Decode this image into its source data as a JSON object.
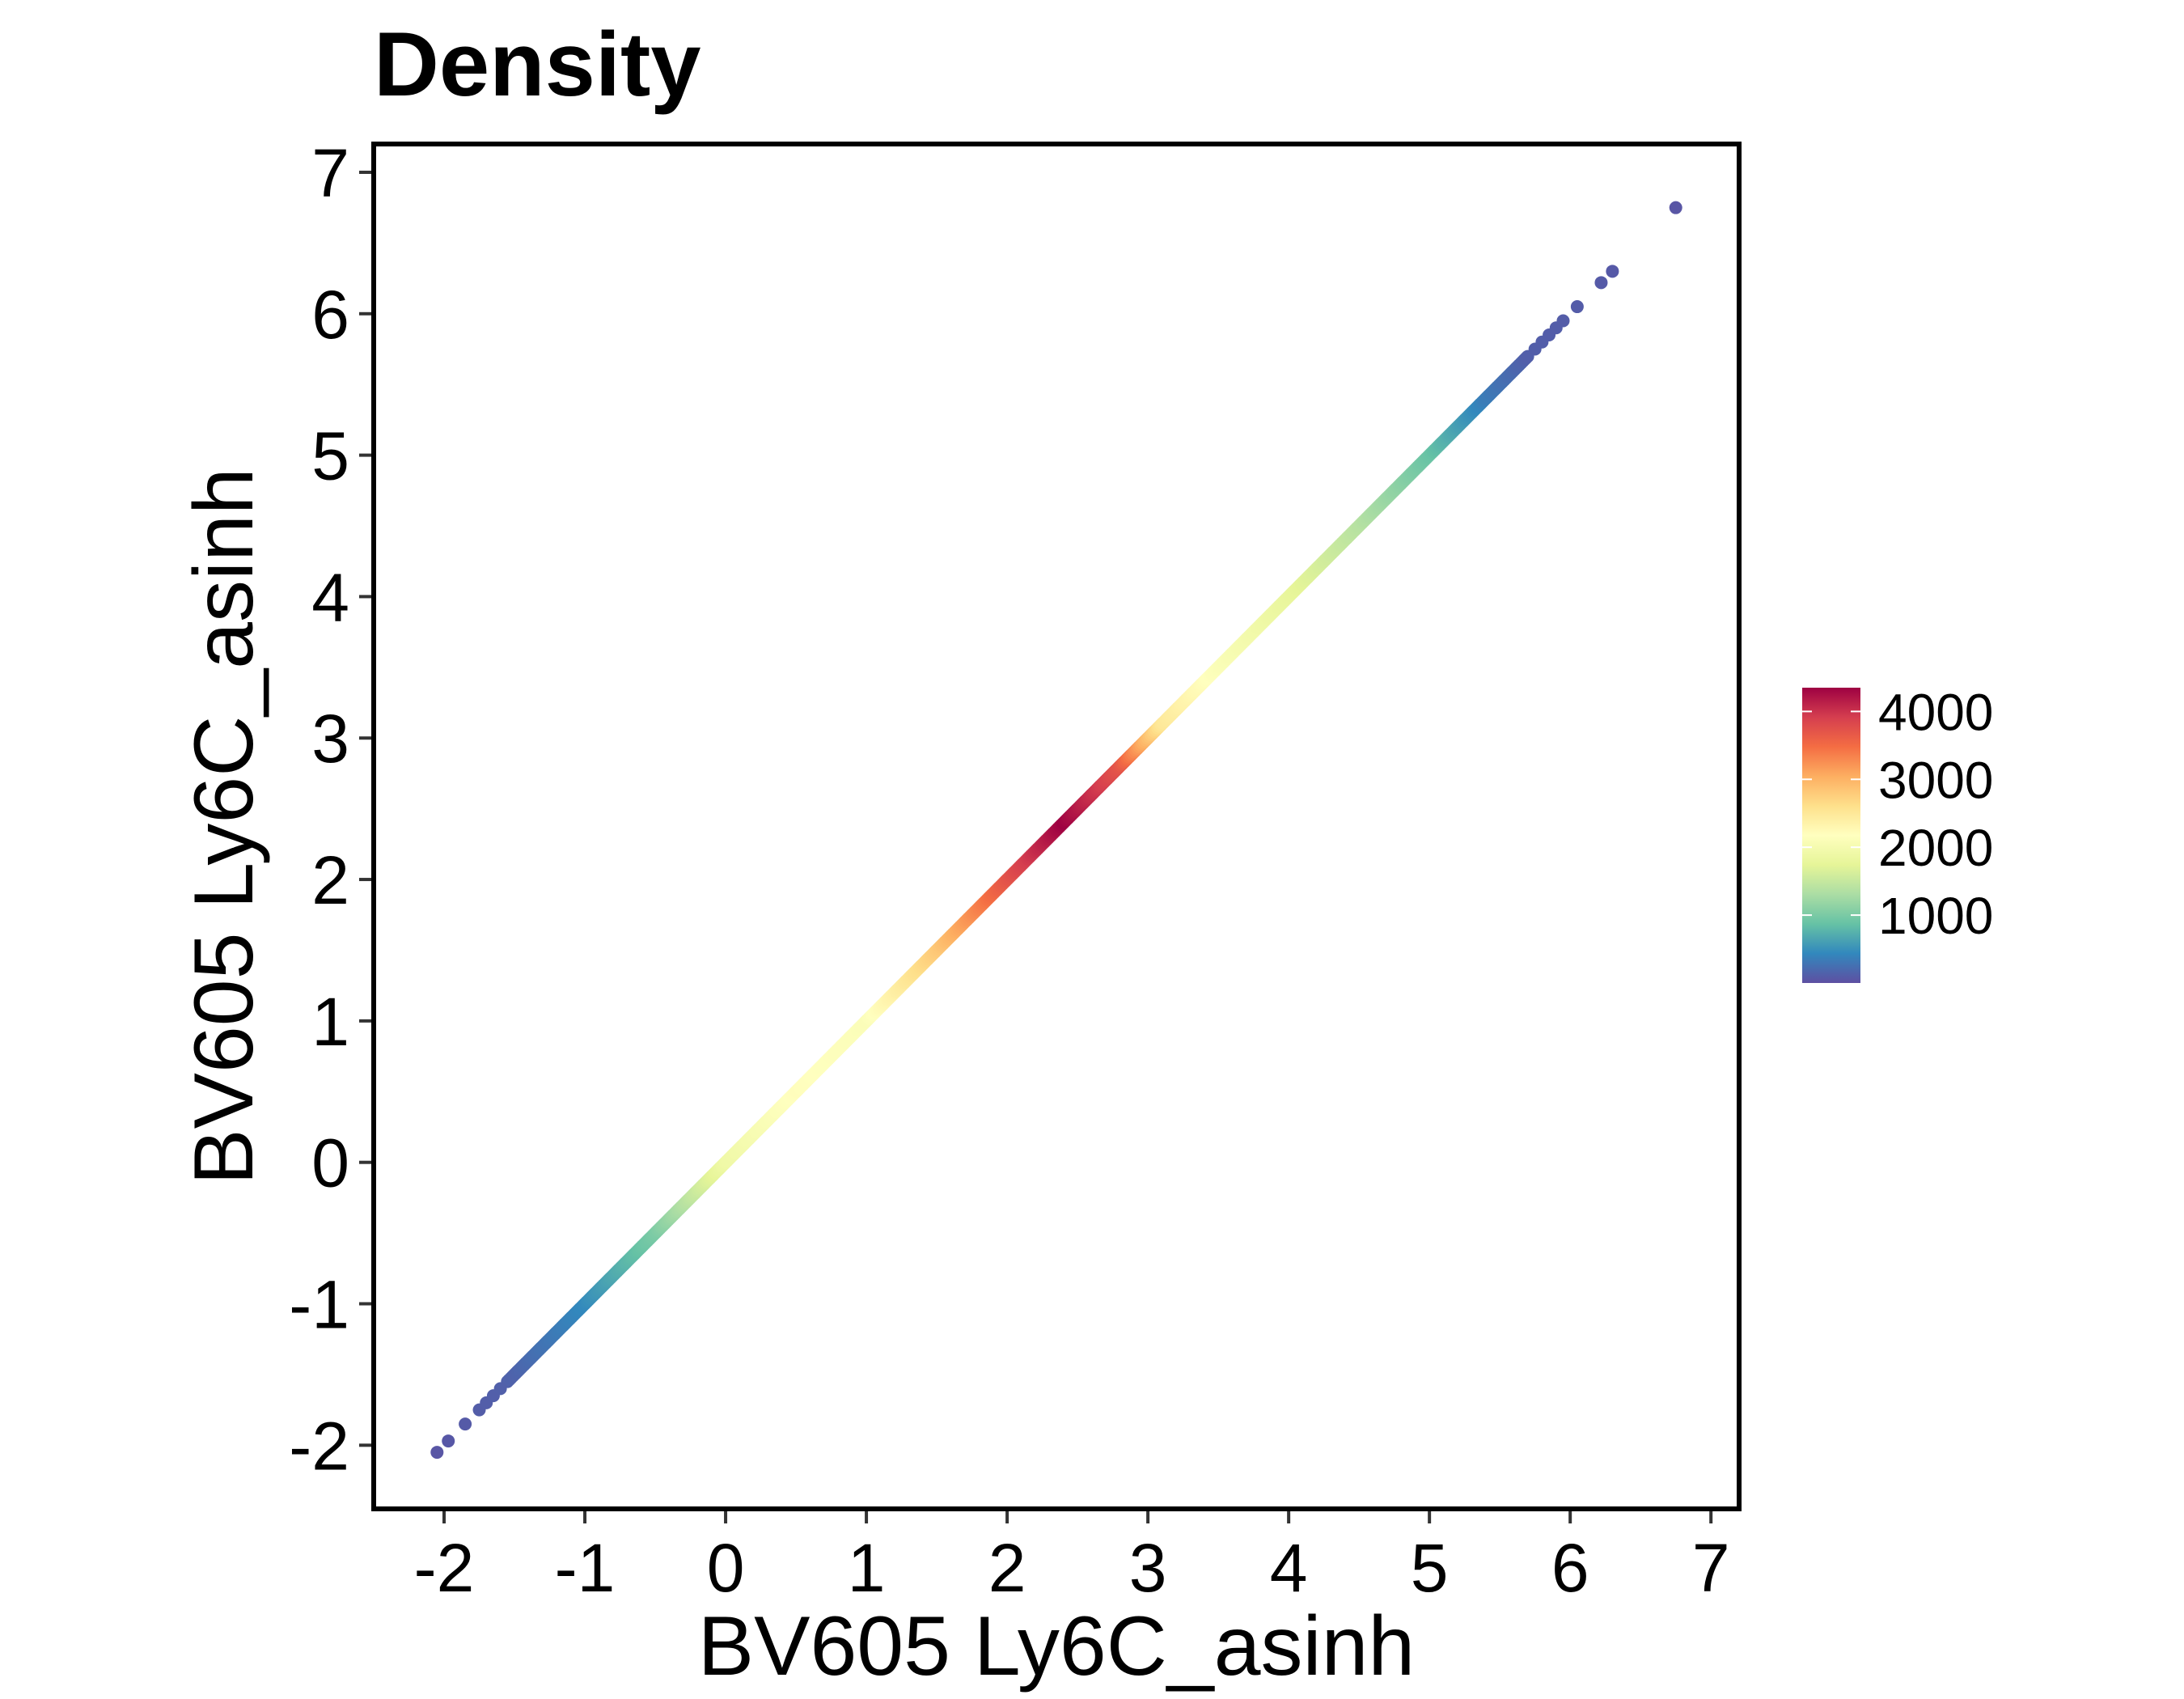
{
  "chart_data": {
    "type": "scatter",
    "title": "Density",
    "xlabel": "BV605 Ly6C_asinh",
    "ylabel": "BV605 Ly6C_asinh",
    "xlim": [
      -2.5,
      7.2
    ],
    "ylim": [
      -2.45,
      7.2
    ],
    "x_ticks": [
      "-2",
      "-1",
      "0",
      "1",
      "2",
      "3",
      "4",
      "5",
      "6",
      "7"
    ],
    "y_ticks": [
      "-2",
      "-1",
      "0",
      "1",
      "2",
      "3",
      "4",
      "5",
      "6",
      "7"
    ],
    "grid": false,
    "line": {
      "x_start": -2.05,
      "x_end": 6.75,
      "relation": "y = x",
      "density_profile": [
        {
          "x": -2.05,
          "density": 50
        },
        {
          "x": -1.5,
          "density": 150
        },
        {
          "x": -1.0,
          "density": 450
        },
        {
          "x": -0.5,
          "density": 1000
        },
        {
          "x": 0.0,
          "density": 1900
        },
        {
          "x": 0.5,
          "density": 2200
        },
        {
          "x": 1.0,
          "density": 2100
        },
        {
          "x": 1.5,
          "density": 2800
        },
        {
          "x": 2.0,
          "density": 3700
        },
        {
          "x": 2.4,
          "density": 4350
        },
        {
          "x": 2.8,
          "density": 3700
        },
        {
          "x": 3.1,
          "density": 2500
        },
        {
          "x": 3.5,
          "density": 2100
        },
        {
          "x": 4.0,
          "density": 1800
        },
        {
          "x": 4.5,
          "density": 1400
        },
        {
          "x": 5.0,
          "density": 900
        },
        {
          "x": 5.4,
          "density": 350
        },
        {
          "x": 5.7,
          "density": 120
        },
        {
          "x": 6.75,
          "density": 50
        }
      ],
      "outlier_points": [
        {
          "x": -2.05,
          "y": -2.05
        },
        {
          "x": -1.97,
          "y": -1.97
        },
        {
          "x": -1.85,
          "y": -1.85
        },
        {
          "x": -1.75,
          "y": -1.75
        },
        {
          "x": -1.7,
          "y": -1.7
        },
        {
          "x": -1.65,
          "y": -1.65
        },
        {
          "x": -1.6,
          "y": -1.6
        },
        {
          "x": 5.75,
          "y": 5.75
        },
        {
          "x": 5.8,
          "y": 5.8
        },
        {
          "x": 5.85,
          "y": 5.85
        },
        {
          "x": 5.9,
          "y": 5.9
        },
        {
          "x": 5.95,
          "y": 5.95
        },
        {
          "x": 6.05,
          "y": 6.05
        },
        {
          "x": 6.22,
          "y": 6.22
        },
        {
          "x": 6.3,
          "y": 6.3
        },
        {
          "x": 6.75,
          "y": 6.75
        }
      ]
    },
    "legend": {
      "placement": "right",
      "type": "colorbar",
      "min": 0,
      "max": 4350,
      "ticks": [
        "1000",
        "2000",
        "3000",
        "4000"
      ],
      "palette": [
        "#5E4FA2",
        "#3288BD",
        "#66C2A5",
        "#ABDDA4",
        "#E6F598",
        "#FFFFBF",
        "#FEE08B",
        "#FDAE61",
        "#F46D43",
        "#D53E4F",
        "#9E0142"
      ]
    }
  }
}
